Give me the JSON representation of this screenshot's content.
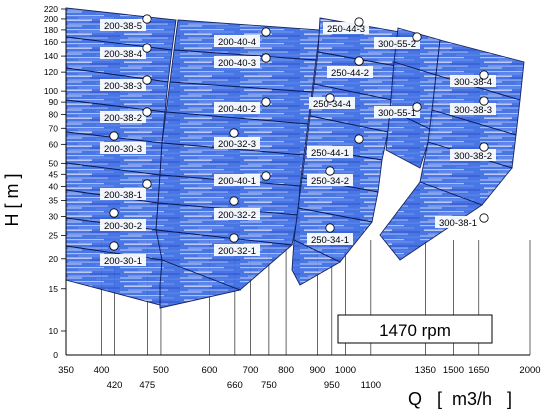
{
  "chart_data": {
    "type": "area",
    "title": "",
    "speed_label": "1470 rpm",
    "xlabel": "Q   [  m3/h   ]",
    "ylabel": "H  [  m  ]",
    "x_scale": "log",
    "y_scale": "log",
    "xlim": [
      350,
      2000
    ],
    "ylim": [
      10,
      220
    ],
    "x_ticks_row1": [
      350,
      400,
      500,
      600,
      700,
      800,
      900,
      1000,
      1350,
      1500,
      1650,
      2000
    ],
    "x_ticks_row2": [
      420,
      475,
      660,
      750,
      950,
      1100
    ],
    "y_ticks": [
      220,
      200,
      180,
      160,
      140,
      120,
      100,
      90,
      80,
      70,
      60,
      50,
      45,
      40,
      35,
      30,
      25,
      20,
      15,
      10
    ],
    "y_tick_zero": "0",
    "pump_labels": [
      "200-38-5",
      "200-38-4",
      "200-38-3",
      "200-38-2",
      "200-30-3",
      "200-38-1",
      "200-30-2",
      "200-30-1",
      "200-40-4",
      "200-40-3",
      "200-40-2",
      "200-32-3",
      "200-40-1",
      "200-32-2",
      "200-32-1",
      "250-44-3",
      "250-44-2",
      "250-34-4",
      "250-44-1",
      "250-34-2",
      "250-34-1",
      "300-55-2",
      "300-55-1",
      "300-38-4",
      "300-38-3",
      "300-38-2",
      "300-38-1"
    ],
    "colors": {
      "band_dark": "#1f4fd6",
      "band_mid": "#4a7bea",
      "band_light": "#9fb6f0",
      "band_pale": "#c9d4f3",
      "edge": "#0a1a5a",
      "label_bg": "#ffffff"
    }
  }
}
